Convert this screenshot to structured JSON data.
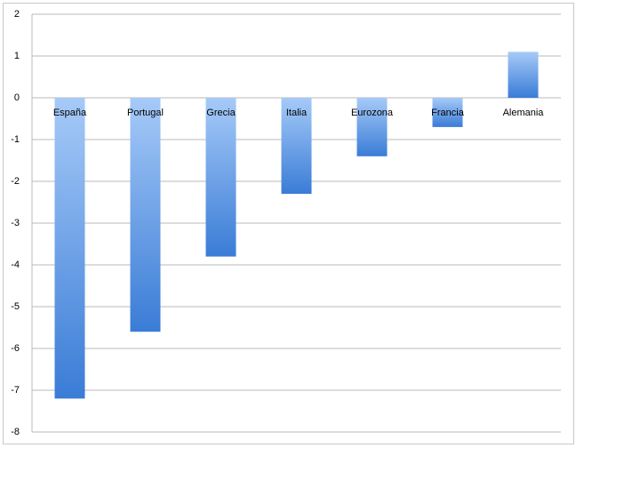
{
  "chart_data": {
    "type": "bar",
    "categories": [
      "España",
      "Portugal",
      "Grecia",
      "Italia",
      "Eurozona",
      "Francia",
      "Alemania"
    ],
    "values": [
      -7.2,
      -5.6,
      -3.8,
      -2.3,
      -1.4,
      -0.7,
      1.1
    ],
    "gradient": [
      "#a6caf8",
      "#3a7cd6"
    ],
    "ylim": [
      -8,
      2
    ],
    "yticks": [
      -8,
      -7,
      -6,
      -5,
      -4,
      -3,
      -2,
      -1,
      0,
      1,
      2
    ],
    "grid": true
  }
}
